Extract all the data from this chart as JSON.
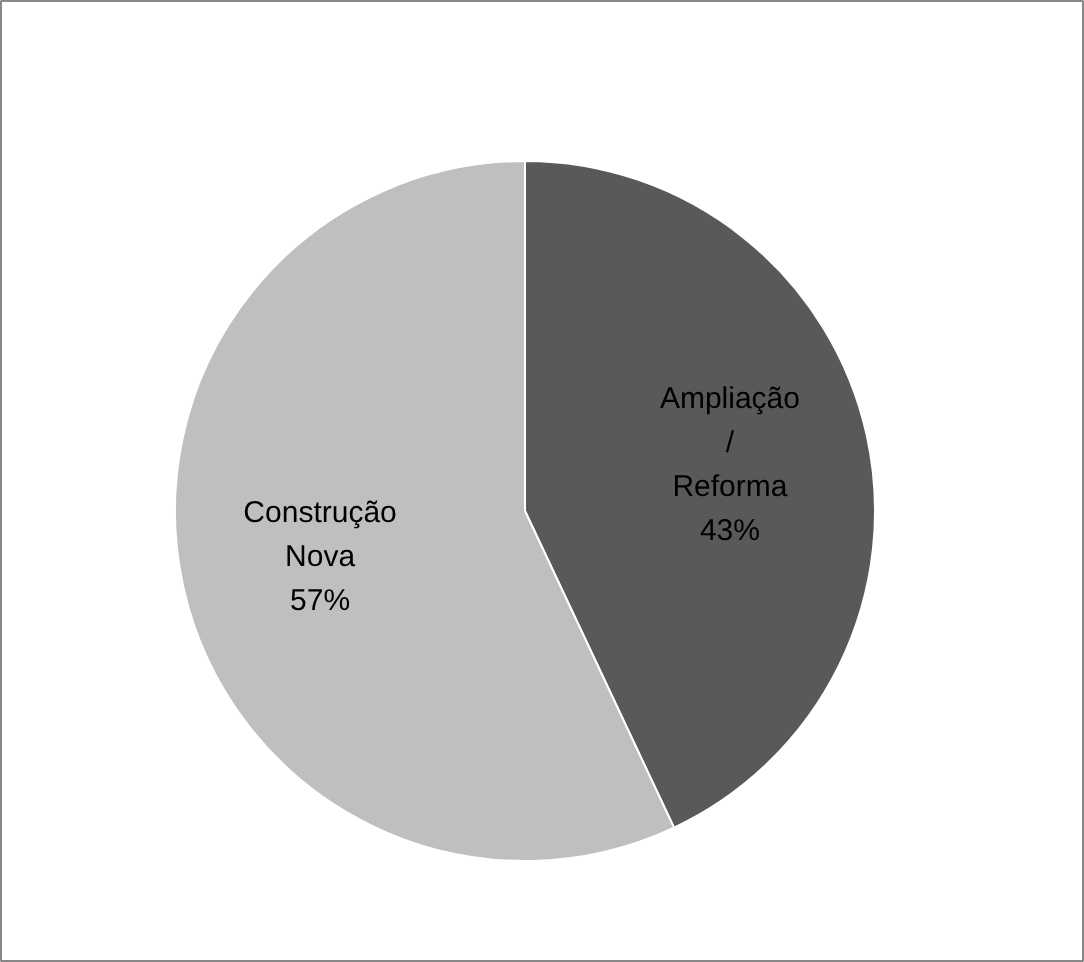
{
  "chart_data": {
    "type": "pie",
    "categories": [
      "Ampliação / Reforma",
      "Construção Nova"
    ],
    "values": [
      43,
      57
    ],
    "colors": [
      "#595959",
      "#bfbfbf"
    ],
    "value_labels": [
      "43%",
      "57%"
    ]
  }
}
